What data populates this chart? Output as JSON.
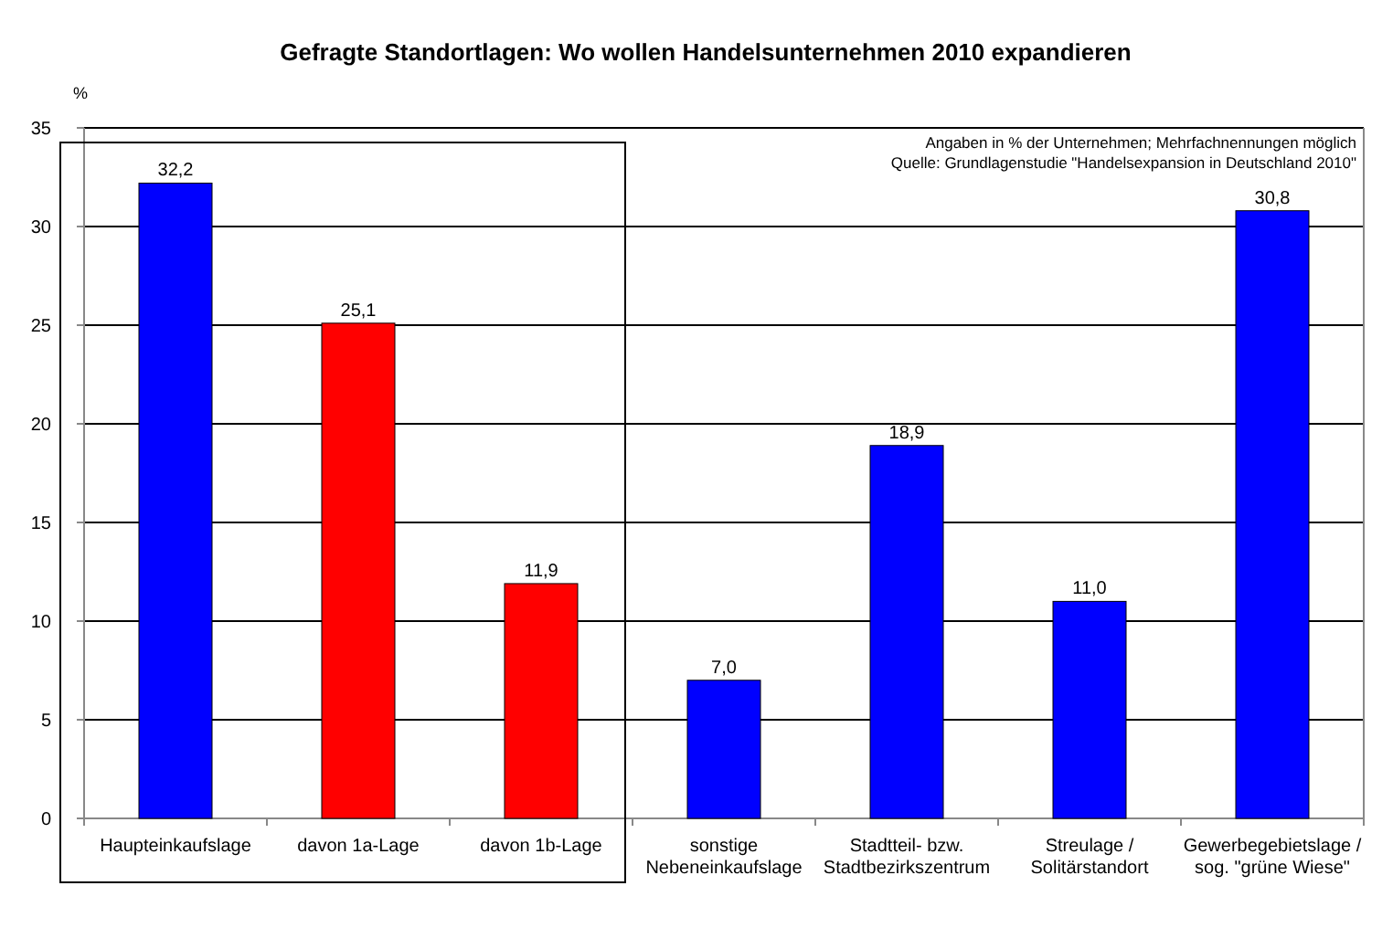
{
  "chart_data": {
    "type": "bar",
    "title": "Gefragte Standortlagen: Wo wollen Handelsunternehmen 2010 expandieren",
    "ylabel": "%",
    "categories": [
      "Haupteinkaufslage",
      "davon 1a-Lage",
      "davon 1b-Lage",
      "sonstige\nNebeneinkaufslage",
      "Stadtteil- bzw.\nStadtbezirkszentrum",
      "Streulage /\nSolitärstandort",
      "Gewerbegebietslage /\nsog. \"grüne Wiese\""
    ],
    "values": [
      32.2,
      25.1,
      11.9,
      7.0,
      18.9,
      11.0,
      30.8
    ],
    "colors": [
      "#0000ff",
      "#ff0000",
      "#ff0000",
      "#0000ff",
      "#0000ff",
      "#0000ff",
      "#0000ff"
    ],
    "value_labels": [
      "32,2",
      "25,1",
      "11,9",
      "7,0",
      "18,9",
      "11,0",
      "30,8"
    ],
    "ylim": [
      0,
      35
    ],
    "yticks": [
      0,
      5,
      10,
      15,
      20,
      25,
      30,
      35
    ],
    "grid": "y",
    "annotations": [
      "Angaben in % der Unternehmen; Mehrfachnennungen möglich",
      "Quelle: Grundlagenstudie \"Handelsexpansion in Deutschland 2010\""
    ]
  }
}
